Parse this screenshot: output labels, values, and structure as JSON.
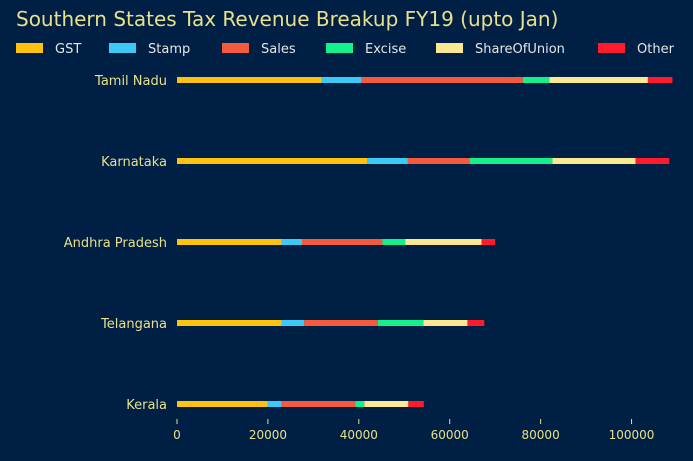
{
  "colors": {
    "background": "#001f45",
    "text": "#e8e08a",
    "legend_text": "#e6e6e6"
  },
  "chart_data": {
    "type": "bar",
    "orientation": "horizontal",
    "stacked": true,
    "title": "Southern States Tax Revenue Breakup FY19 (upto Jan)",
    "xlabel": "",
    "ylabel": "",
    "xlim": [
      0,
      110000
    ],
    "xticks": [
      0,
      20000,
      40000,
      60000,
      80000,
      100000
    ],
    "grid": false,
    "legend_position": "top",
    "categories": [
      "Tamil Nadu",
      "Karnataka",
      "Andhra Pradesh",
      "Telangana",
      "Kerala"
    ],
    "series": [
      {
        "name": "GST",
        "color": "#ffc20e",
        "values": [
          31800,
          41800,
          23000,
          23000,
          20000
        ]
      },
      {
        "name": "Stamp",
        "color": "#3ec8f5",
        "values": [
          8800,
          9000,
          4500,
          5000,
          3000
        ]
      },
      {
        "name": "Sales",
        "color": "#f55a3c",
        "values": [
          35500,
          13500,
          17700,
          16200,
          16200
        ]
      },
      {
        "name": "Excise",
        "color": "#14f08c",
        "values": [
          5800,
          18300,
          5000,
          10000,
          2000
        ]
      },
      {
        "name": "ShareOfUnion",
        "color": "#fbe891",
        "values": [
          21700,
          18300,
          16800,
          9700,
          9700
        ]
      },
      {
        "name": "Other",
        "color": "#ff1a2c",
        "values": [
          5400,
          7400,
          3000,
          3700,
          3400
        ]
      }
    ]
  }
}
